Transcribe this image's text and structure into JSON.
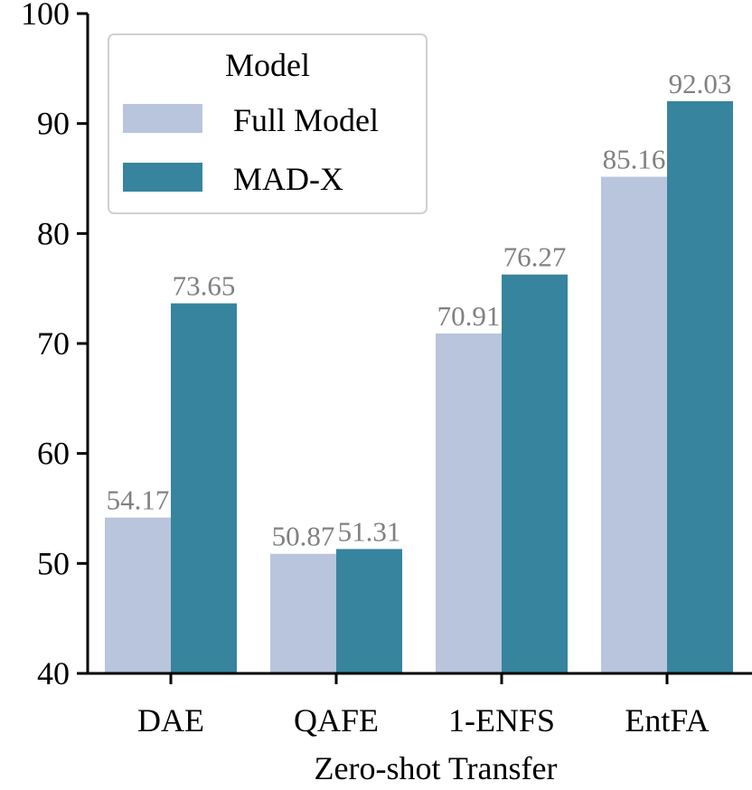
{
  "chart_data": {
    "type": "bar",
    "title": "",
    "xlabel": "Zero-shot Transfer",
    "ylabel": "",
    "ylim": [
      40,
      100
    ],
    "yticks": [
      40,
      50,
      60,
      70,
      80,
      90,
      100
    ],
    "grid": false,
    "categories": [
      "DAE",
      "QAFE",
      "1-ENFS",
      "EntFA"
    ],
    "series": [
      {
        "name": "Full Model",
        "color": "#b8c5dc",
        "values": [
          54.17,
          50.87,
          70.91,
          85.16
        ],
        "labels": [
          "54.17",
          "50.87",
          "70.91",
          "85.16"
        ]
      },
      {
        "name": "MAD-X",
        "color": "#37849e",
        "values": [
          73.65,
          51.31,
          76.27,
          92.03
        ],
        "labels": [
          "73.65",
          "51.31",
          "76.27",
          "92.03"
        ]
      }
    ],
    "legend": {
      "title": "Model",
      "position": "top-left"
    }
  }
}
